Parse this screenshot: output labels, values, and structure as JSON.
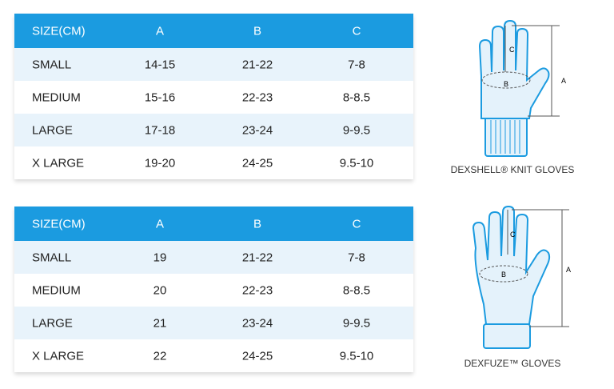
{
  "tables": [
    {
      "header": [
        "SIZE(CM)",
        "A",
        "B",
        "C"
      ],
      "rows": [
        [
          "SMALL",
          "14-15",
          "21-22",
          "7-8"
        ],
        [
          "MEDIUM",
          "15-16",
          "22-23",
          "8-8.5"
        ],
        [
          "LARGE",
          "17-18",
          "23-24",
          "9-9.5"
        ],
        [
          "X LARGE",
          "19-20",
          "24-25",
          "9.5-10"
        ]
      ]
    },
    {
      "header": [
        "SIZE(CM)",
        "A",
        "B",
        "C"
      ],
      "rows": [
        [
          "SMALL",
          "19",
          "21-22",
          "7-8"
        ],
        [
          "MEDIUM",
          "20",
          "22-23",
          "8-8.5"
        ],
        [
          "LARGE",
          "21",
          "23-24",
          "9-9.5"
        ],
        [
          "X LARGE",
          "22",
          "24-25",
          "9.5-10"
        ]
      ]
    }
  ],
  "gloves": [
    {
      "caption": "DEXSHELL® KNIT GLOVES",
      "labels": [
        "A",
        "B",
        "C"
      ]
    },
    {
      "caption": "DEXFUZE™ GLOVES",
      "labels": [
        "A",
        "B",
        "C"
      ]
    }
  ]
}
